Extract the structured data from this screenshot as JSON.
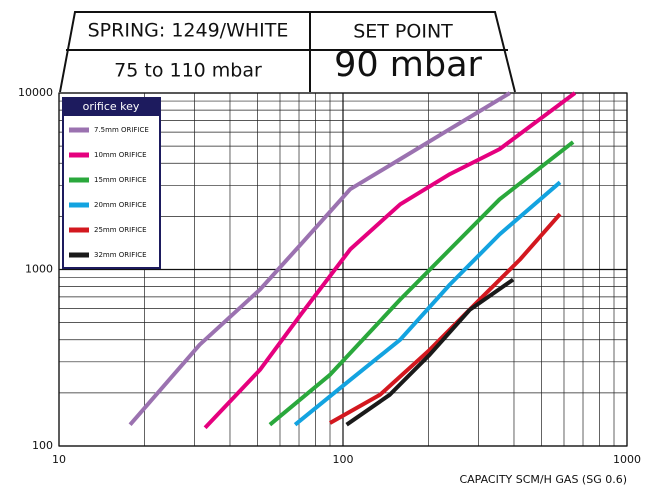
{
  "header": {
    "spring": "SPRING: 1249/WHITE",
    "range": "75 to 110 mbar",
    "set_point_label": "SET POINT",
    "set_point": "90 mbar"
  },
  "chart_data": {
    "type": "line",
    "x_label": "CAPACITY SCM/H GAS (SG 0.6)",
    "legend_title": "orifice key",
    "legend": "top-left",
    "xscale": "log",
    "yscale": "log",
    "grid": true,
    "xlim": [
      10,
      1000
    ],
    "ylim": [
      100,
      10000
    ],
    "xticks": [
      10,
      100,
      1000
    ],
    "yticks": [
      100,
      1000,
      10000
    ],
    "series": [
      {
        "name": "7.5mm ORIFICE",
        "color": "#9b72b0",
        "x": [
          17.8,
          31.3,
          51,
          71,
          106,
          159,
          238,
          387
        ],
        "values": [
          132,
          375,
          769,
          1387,
          2850,
          4220,
          6240,
          10000
        ]
      },
      {
        "name": "10mm ORIFICE",
        "color": "#e5007e",
        "x": [
          32.7,
          51,
          71,
          106,
          159,
          238,
          356,
          656
        ],
        "values": [
          127,
          270,
          555,
          1300,
          2340,
          3470,
          4810,
          10000
        ]
      },
      {
        "name": "15mm ORIFICE",
        "color": "#2aa83c",
        "x": [
          55.3,
          90,
          159,
          238,
          356,
          646
        ],
        "values": [
          132,
          253,
          676,
          1300,
          2500,
          5270
        ]
      },
      {
        "name": "20mm ORIFICE",
        "color": "#13a3e0",
        "x": [
          67.8,
          106,
          159,
          238,
          356,
          581
        ],
        "values": [
          132,
          237,
          400,
          822,
          1580,
          3120
        ]
      },
      {
        "name": "25mm ORIFICE",
        "color": "#d3181f",
        "x": [
          90,
          135,
          202,
          303,
          420,
          581
        ],
        "values": [
          135,
          195,
          351,
          676,
          1140,
          2060
        ]
      },
      {
        "name": "32mm ORIFICE",
        "color": "#1a1a1a",
        "x": [
          103,
          146,
          202,
          280,
          397
        ],
        "values": [
          132,
          195,
          329,
          593,
          877
        ]
      }
    ]
  }
}
